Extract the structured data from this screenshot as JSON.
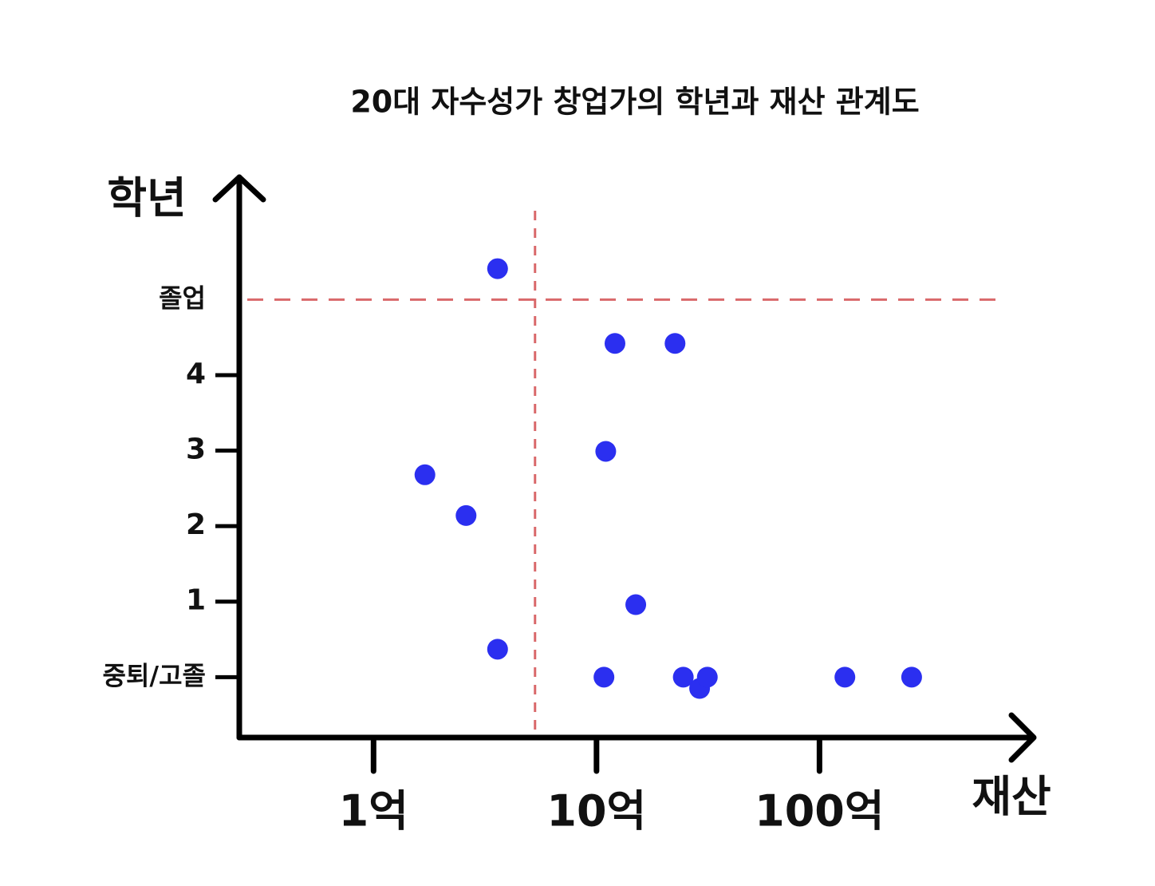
{
  "chart_data": {
    "type": "scatter",
    "title": "20대 자수성가 창업가의 학년과 재산 관계도",
    "x_label": "재산",
    "y_label": "학년",
    "xscale": "log",
    "x": [
      3.6,
      12.1,
      22.5,
      11.0,
      1.7,
      2.6,
      15.0,
      3.6,
      10.8,
      24.5,
      29,
      31.4,
      130,
      259
    ],
    "values": [
      5.41,
      4.42,
      4.42,
      2.99,
      2.68,
      2.14,
      0.96,
      0.37,
      0,
      0,
      -0.15,
      0,
      0,
      0
    ],
    "color": "#2b2ff0",
    "xlim": [
      0.25,
      870
    ],
    "ylim": [
      -0.8,
      6.6
    ],
    "xticks": [
      {
        "value": 1,
        "label": "1억"
      },
      {
        "value": 10,
        "label": "10억"
      },
      {
        "value": 100,
        "label": "100억"
      }
    ],
    "yticks": [
      {
        "value": 0,
        "label": "중퇴/고졸"
      },
      1,
      2,
      3,
      4,
      {
        "value": 5,
        "label": "졸업"
      }
    ],
    "reference_lines": {
      "x": 5.3,
      "y": 5,
      "color": "#d9686a"
    }
  }
}
